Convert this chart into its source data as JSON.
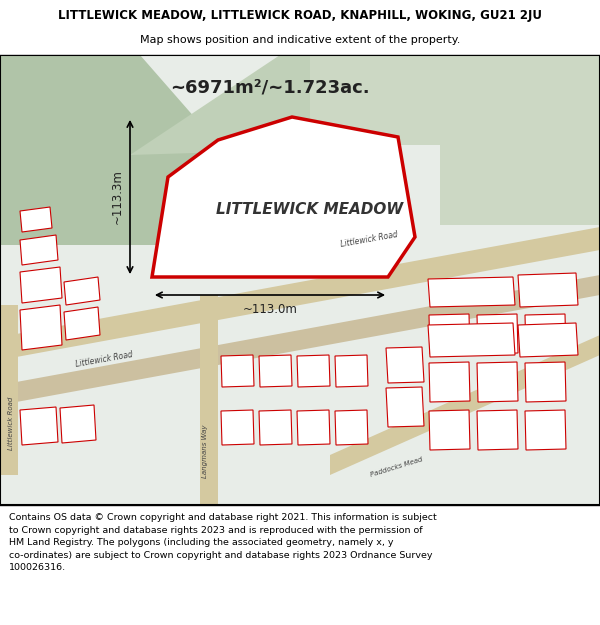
{
  "title_line1": "LITTLEWICK MEADOW, LITTLEWICK ROAD, KNAPHILL, WOKING, GU21 2JU",
  "title_line2": "Map shows position and indicative extent of the property.",
  "footer_lines": [
    "Contains OS data © Crown copyright and database right 2021. This information is subject",
    "to Crown copyright and database rights 2023 and is reproduced with the permission of",
    "HM Land Registry. The polygons (including the associated geometry, namely x, y",
    "co-ordinates) are subject to Crown copyright and database rights 2023 Ordnance Survey",
    "100026316."
  ],
  "area_label": "~6971m²/~1.723ac.",
  "property_label": "LITTLEWICK MEADOW",
  "dim_horizontal": "~113.0m",
  "dim_vertical": "~113.3m",
  "bg_map_color": "#e8ede8",
  "property_fill": "#ffffff",
  "property_edge_color": "#cc0000",
  "road_color": "#d4c9a0",
  "building_outline_color": "#cc0000",
  "building_fill": "#ffffff",
  "border_color": "#000000",
  "title_bg": "#ffffff",
  "footer_bg": "#ffffff",
  "wood_color1": "#b0c4a8",
  "wood_color2": "#c0d0b8",
  "wood_color3": "#ccd8c4"
}
